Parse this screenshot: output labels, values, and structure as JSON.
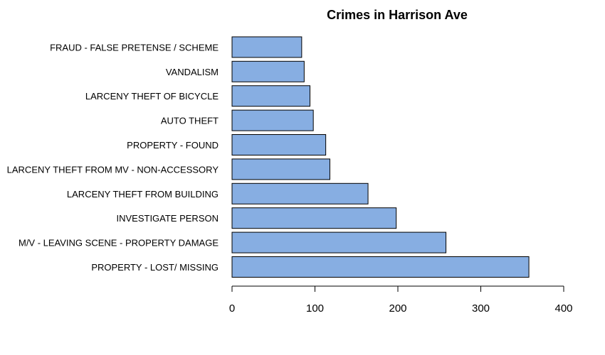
{
  "chart_data": {
    "type": "bar",
    "orientation": "horizontal",
    "title": "Crimes in Harrison Ave",
    "xlabel": "",
    "ylabel": "",
    "categories": [
      "PROPERTY - LOST/ MISSING",
      "M/V - LEAVING SCENE - PROPERTY DAMAGE",
      "INVESTIGATE PERSON",
      "LARCENY THEFT FROM BUILDING",
      "LARCENY THEFT FROM MV - NON-ACCESSORY",
      "PROPERTY - FOUND",
      "AUTO THEFT",
      "LARCENY THEFT OF BICYCLE",
      "VANDALISM",
      "FRAUD - FALSE PRETENSE / SCHEME"
    ],
    "values": [
      358,
      258,
      198,
      164,
      118,
      113,
      98,
      94,
      87,
      84
    ],
    "xlim": [
      0,
      400
    ],
    "xticks": [
      0,
      100,
      200,
      300,
      400
    ],
    "grid": false,
    "legend": "none",
    "bar_color": "#87AEE2",
    "bar_edge_color": "#000000"
  }
}
